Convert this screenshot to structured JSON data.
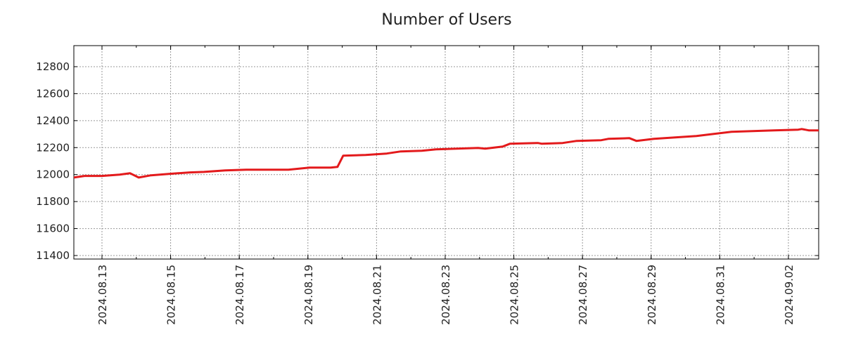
{
  "chart_data": {
    "type": "line",
    "title": "Number of Users",
    "xlabel": "",
    "ylabel": "",
    "xlim": [
      "2024-08-12T04:20",
      "2024-09-02T21:10"
    ],
    "ylim": [
      11374,
      12956
    ],
    "grid": true,
    "yticks": [
      11400,
      11600,
      11800,
      12000,
      12200,
      12400,
      12600,
      12800
    ],
    "xticks": [
      "2024.08.13",
      "2024.08.15",
      "2024.08.17",
      "2024.08.19",
      "2024.08.21",
      "2024.08.23",
      "2024.08.25",
      "2024.08.27",
      "2024.08.29",
      "2024.08.31",
      "2024.09.02"
    ],
    "series": [
      {
        "name": "Number of Users",
        "color": "#e31a1c",
        "points": [
          [
            "2024-08-12T04:20",
            11978
          ],
          [
            "2024-08-12T11:50",
            11990
          ],
          [
            "2024-08-13T00:00",
            11990
          ],
          [
            "2024-08-13T12:20",
            12000
          ],
          [
            "2024-08-13T19:40",
            12010
          ],
          [
            "2024-08-14T01:40",
            11978
          ],
          [
            "2024-08-14T10:20",
            11995
          ],
          [
            "2024-08-14T22:40",
            12005
          ],
          [
            "2024-08-15T13:30",
            12016
          ],
          [
            "2024-08-15T23:20",
            12020
          ],
          [
            "2024-08-16T14:10",
            12031
          ],
          [
            "2024-08-17T04:50",
            12036
          ],
          [
            "2024-08-18T10:20",
            12036
          ],
          [
            "2024-08-19T01:10",
            12052
          ],
          [
            "2024-08-19T15:50",
            12052
          ],
          [
            "2024-08-19T20:40",
            12057
          ],
          [
            "2024-08-20T00:40",
            12140
          ],
          [
            "2024-08-20T16:20",
            12146
          ],
          [
            "2024-08-21T07:10",
            12156
          ],
          [
            "2024-08-21T17:00",
            12172
          ],
          [
            "2024-08-22T07:40",
            12177
          ],
          [
            "2024-08-22T17:30",
            12187
          ],
          [
            "2024-08-23T23:00",
            12198
          ],
          [
            "2024-08-24T04:00",
            12192
          ],
          [
            "2024-08-24T16:20",
            12208
          ],
          [
            "2024-08-24T21:20",
            12229
          ],
          [
            "2024-08-25T16:50",
            12234
          ],
          [
            "2024-08-25T19:20",
            12229
          ],
          [
            "2024-08-26T10:10",
            12234
          ],
          [
            "2024-08-26T20:00",
            12250
          ],
          [
            "2024-08-27T13:10",
            12255
          ],
          [
            "2024-08-27T18:00",
            12265
          ],
          [
            "2024-08-28T08:50",
            12270
          ],
          [
            "2024-08-28T13:40",
            12250
          ],
          [
            "2024-08-29T02:00",
            12265
          ],
          [
            "2024-08-29T16:50",
            12276
          ],
          [
            "2024-08-30T07:40",
            12286
          ],
          [
            "2024-08-30T19:50",
            12302
          ],
          [
            "2024-08-31T08:10",
            12317
          ],
          [
            "2024-09-01T13:40",
            12328
          ],
          [
            "2024-09-02T06:50",
            12333
          ],
          [
            "2024-09-02T09:20",
            12338
          ],
          [
            "2024-09-02T14:10",
            12328
          ],
          [
            "2024-09-02T21:10",
            12328
          ]
        ]
      }
    ]
  }
}
